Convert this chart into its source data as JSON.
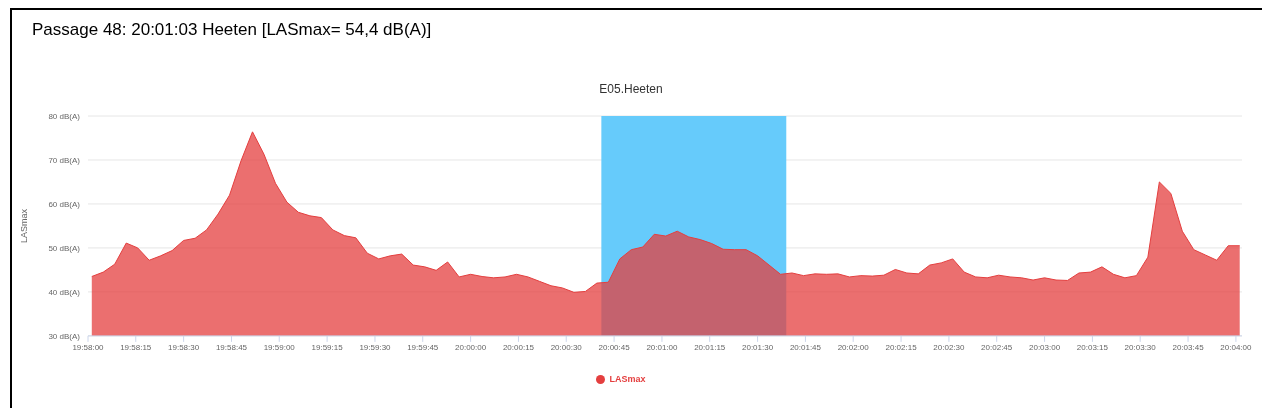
{
  "chart_data": {
    "type": "area",
    "title": "Passage 48: 20:01:03 Heeten [LASmax= 54,4 dB(A)]",
    "subtitle": "E05.Heeten",
    "ylabel": "LASmax",
    "x": [
      19.967,
      19.968,
      19.969,
      19.97,
      19.971,
      19.972,
      19.973,
      19.974,
      19.975,
      19.976,
      19.977,
      19.978,
      19.979,
      19.98,
      19.981,
      19.982,
      19.983,
      19.984,
      19.985,
      19.986,
      19.987,
      19.988,
      19.989,
      19.99,
      19.991,
      19.992,
      19.993,
      19.994,
      19.995,
      19.996,
      19.997,
      19.998,
      19.999,
      20,
      20.001,
      20.002,
      20.003,
      20.004,
      20.005,
      20.006,
      20.007,
      20.008,
      20.009,
      20.01,
      20.011,
      20.012,
      20.013,
      20.014,
      20.015,
      20.016,
      20.017,
      20.018,
      20.019,
      20.02,
      20.021,
      20.022,
      20.023,
      20.024,
      20.025,
      20.026,
      20.027,
      20.028,
      20.029,
      20.03,
      20.031,
      20.032,
      20.033,
      20.034,
      20.035,
      20.036,
      20.037,
      20.038,
      20.039,
      20.04,
      20.041,
      20.042,
      20.043,
      20.044,
      20.045,
      20.046,
      20.047,
      20.048,
      20.049,
      20.05,
      20.051,
      20.052,
      20.053,
      20.054,
      20.055,
      20.056,
      20.057,
      20.058,
      20.059,
      20.06,
      20.061,
      20.062,
      20.063,
      20.064,
      20.065,
      20.066,
      20.067
    ],
    "series": [
      {
        "name": "LASmax",
        "color": "#e43f3f",
        "values": [
          43.5,
          44.5,
          46.3,
          51.1,
          50.0,
          47.2,
          48.2,
          49.4,
          51.7,
          52.2,
          54.1,
          57.7,
          62.0,
          69.8,
          76.4,
          71.3,
          64.7,
          60.4,
          58.1,
          57.3,
          56.9,
          54.1,
          52.8,
          52.3,
          48.8,
          47.5,
          48.2,
          48.6,
          46.1,
          45.7,
          44.9,
          46.8,
          43.4,
          44.0,
          43.5,
          43.2,
          43.4,
          44.0,
          43.4,
          42.4,
          41.4,
          40.9,
          39.9,
          40.1,
          42.0,
          42.2,
          47.5,
          49.6,
          50.2,
          53.1,
          52.7,
          53.8,
          52.5,
          51.9,
          51.0,
          49.7,
          49.6,
          49.6,
          48.2,
          46.1,
          44.0,
          44.3,
          43.7,
          44.1,
          44.0,
          44.1,
          43.4,
          43.7,
          43.6,
          43.8,
          45.1,
          44.3,
          44.1,
          46.1,
          46.6,
          47.5,
          44.5,
          43.4,
          43.2,
          43.8,
          43.4,
          43.2,
          42.7,
          43.2,
          42.7,
          42.6,
          44.3,
          44.5,
          45.7,
          44.0,
          43.2,
          43.7,
          47.9,
          65.0,
          62.4,
          53.8,
          49.6,
          48.4,
          47.2,
          50.5,
          50.5
        ]
      }
    ],
    "xlim": [
      19.96667,
      20.0672
    ],
    "xticks": [
      {
        "value": 19.96667,
        "label": "19:58:00"
      },
      {
        "value": 19.97083,
        "label": "19:58:15"
      },
      {
        "value": 19.975,
        "label": "19:58:30"
      },
      {
        "value": 19.97917,
        "label": "19:58:45"
      },
      {
        "value": 19.98333,
        "label": "19:59:00"
      },
      {
        "value": 19.9875,
        "label": "19:59:15"
      },
      {
        "value": 19.99167,
        "label": "19:59:30"
      },
      {
        "value": 19.99583,
        "label": "19:59:45"
      },
      {
        "value": 20,
        "label": "20:00:00"
      },
      {
        "value": 20.00417,
        "label": "20:00:15"
      },
      {
        "value": 20.00833,
        "label": "20:00:30"
      },
      {
        "value": 20.0125,
        "label": "20:00:45"
      },
      {
        "value": 20.01667,
        "label": "20:01:00"
      },
      {
        "value": 20.02083,
        "label": "20:01:15"
      },
      {
        "value": 20.025,
        "label": "20:01:30"
      },
      {
        "value": 20.02917,
        "label": "20:01:45"
      },
      {
        "value": 20.03333,
        "label": "20:02:00"
      },
      {
        "value": 20.0375,
        "label": "20:02:15"
      },
      {
        "value": 20.04167,
        "label": "20:02:30"
      },
      {
        "value": 20.04583,
        "label": "20:02:45"
      },
      {
        "value": 20.05,
        "label": "20:03:00"
      },
      {
        "value": 20.05417,
        "label": "20:03:15"
      },
      {
        "value": 20.05833,
        "label": "20:03:30"
      },
      {
        "value": 20.0625,
        "label": "20:03:45"
      },
      {
        "value": 20.06667,
        "label": "20:04:00"
      }
    ],
    "ylim": [
      30,
      80
    ],
    "yticks": [
      {
        "value": 30,
        "label": "30 dB(A)"
      },
      {
        "value": 40,
        "label": "40 dB(A)"
      },
      {
        "value": 50,
        "label": "50 dB(A)"
      },
      {
        "value": 60,
        "label": "60 dB(A)"
      },
      {
        "value": 70,
        "label": "70 dB(A)"
      },
      {
        "value": 80,
        "label": "80 dB(A)"
      }
    ],
    "bands": [
      {
        "axis": "x",
        "from": 20.01139,
        "to": 20.0275,
        "color": "#66cbfb"
      }
    ],
    "grid": "y",
    "legend": "bottom"
  }
}
